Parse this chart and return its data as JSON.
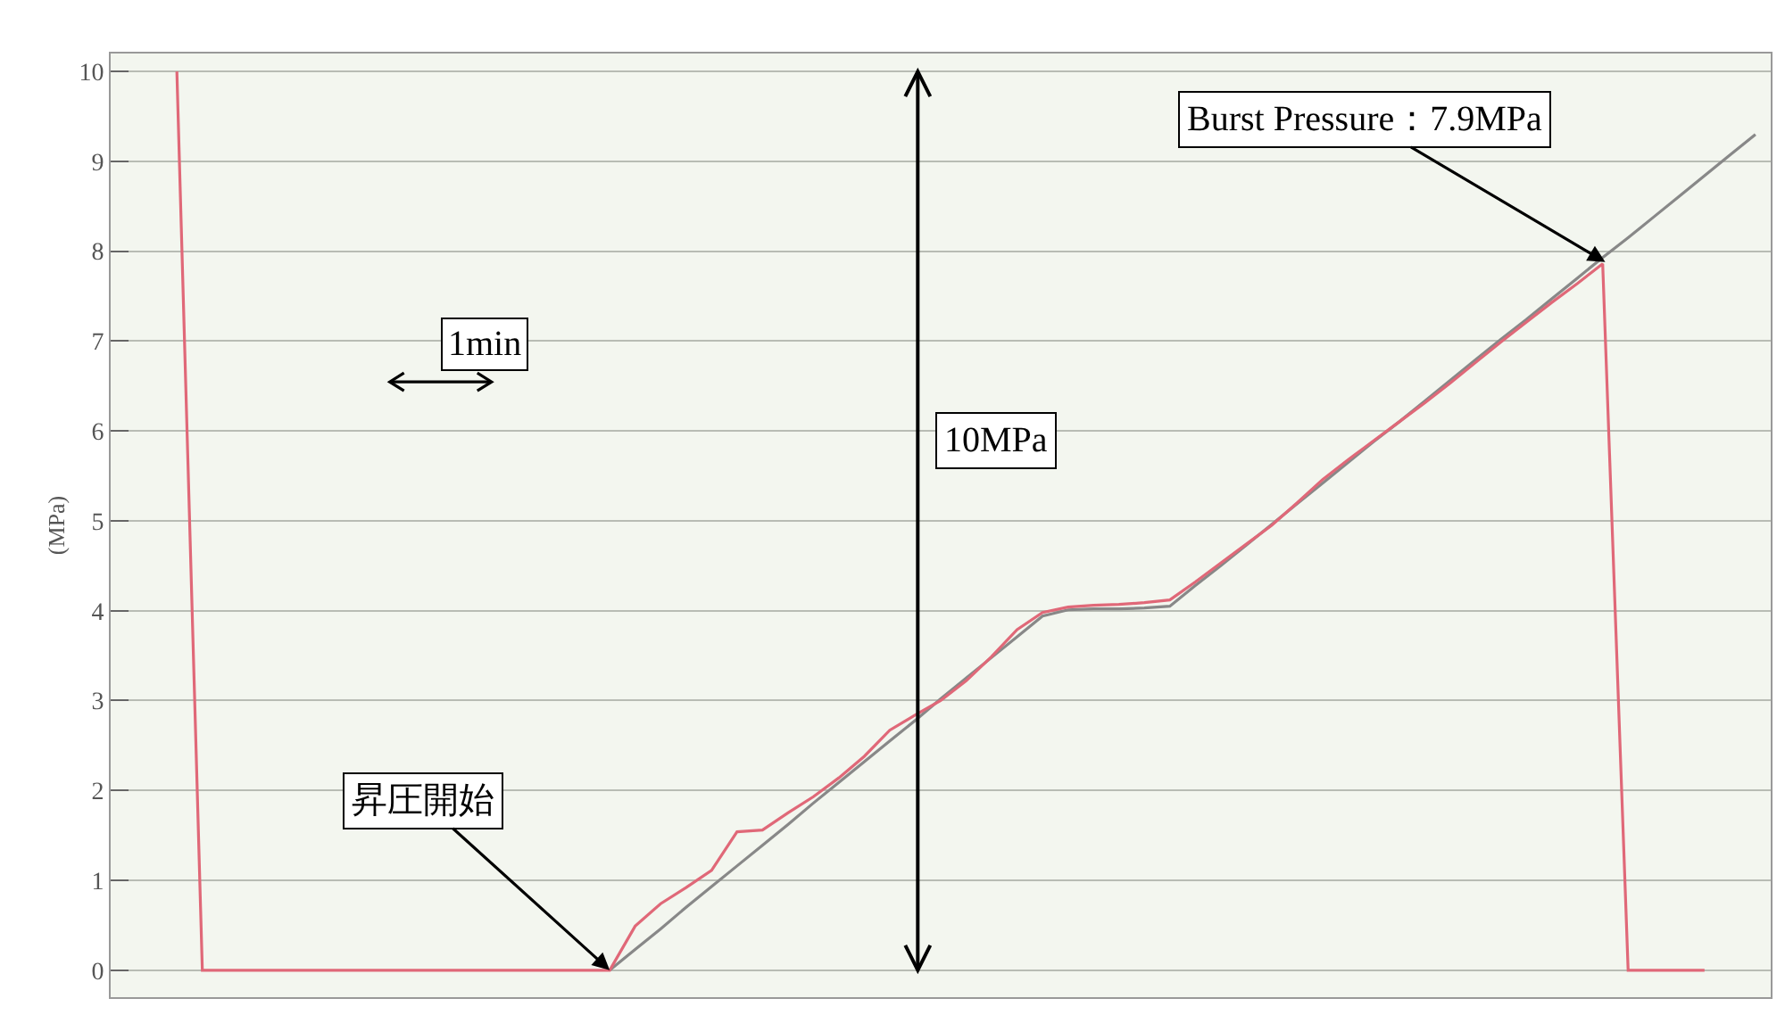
{
  "chart_data": {
    "type": "line",
    "ylabel": "(MPa)",
    "categories": [
      null,
      null,
      null,
      null,
      null,
      null,
      null,
      null,
      null,
      null,
      null,
      null,
      null,
      null,
      null,
      null,
      null,
      null,
      null,
      null,
      null,
      null,
      null,
      null,
      null,
      null,
      null,
      null,
      null,
      null,
      null,
      null,
      null,
      null,
      null,
      null,
      null,
      null,
      null,
      null,
      null,
      null,
      null,
      null,
      null,
      null,
      null,
      null,
      null,
      null,
      null,
      null,
      null,
      null,
      null,
      null,
      null,
      null,
      null,
      null,
      null,
      null,
      null,
      null
    ],
    "ylim": [
      -0.3,
      10.2
    ],
    "yticks": [
      0,
      1,
      2,
      3,
      4,
      5,
      6,
      7,
      8,
      9,
      10
    ],
    "grid": "y",
    "marker": "none",
    "line_style": "solid",
    "series": [
      {
        "color": "#888888",
        "values": [
          null,
          null,
          null,
          null,
          null,
          null,
          null,
          null,
          null,
          null,
          null,
          null,
          null,
          null,
          null,
          null,
          null,
          null,
          0,
          0.23,
          0.46,
          0.7,
          0.93,
          1.16,
          1.39,
          1.62,
          1.86,
          2.09,
          2.32,
          2.55,
          2.78,
          3.02,
          3.25,
          3.48,
          3.71,
          3.94,
          4.01,
          4.02,
          4.02,
          4.03,
          4.05,
          4.28,
          4.5,
          4.73,
          4.96,
          5.19,
          5.42,
          5.65,
          5.88,
          6.1,
          6.33,
          6.56,
          6.79,
          7.02,
          7.24,
          7.47,
          7.7,
          7.93,
          8.15,
          8.38,
          8.61,
          8.84,
          9.07,
          9.3
        ]
      },
      {
        "color": "#e06878",
        "values": [
          null,
          10,
          0,
          0,
          0,
          0,
          0,
          0,
          0,
          0,
          0,
          0,
          0,
          0,
          0,
          0,
          0,
          0,
          0,
          0.49,
          0.74,
          0.92,
          1.11,
          1.54,
          1.56,
          1.75,
          1.93,
          2.14,
          2.38,
          2.67,
          2.84,
          3.0,
          3.22,
          3.49,
          3.79,
          3.98,
          4.04,
          4.06,
          4.07,
          4.09,
          4.12,
          4.32,
          4.53,
          4.74,
          4.95,
          5.2,
          5.46,
          5.68,
          5.89,
          6.1,
          6.31,
          6.53,
          6.76,
          6.99,
          7.21,
          7.43,
          7.64,
          7.86,
          0,
          0,
          0,
          0,
          null,
          null
        ]
      }
    ],
    "annotations": [
      "昇圧開始",
      "Burst Pressure：7.9MPa",
      "10MPa",
      "1min"
    ]
  }
}
